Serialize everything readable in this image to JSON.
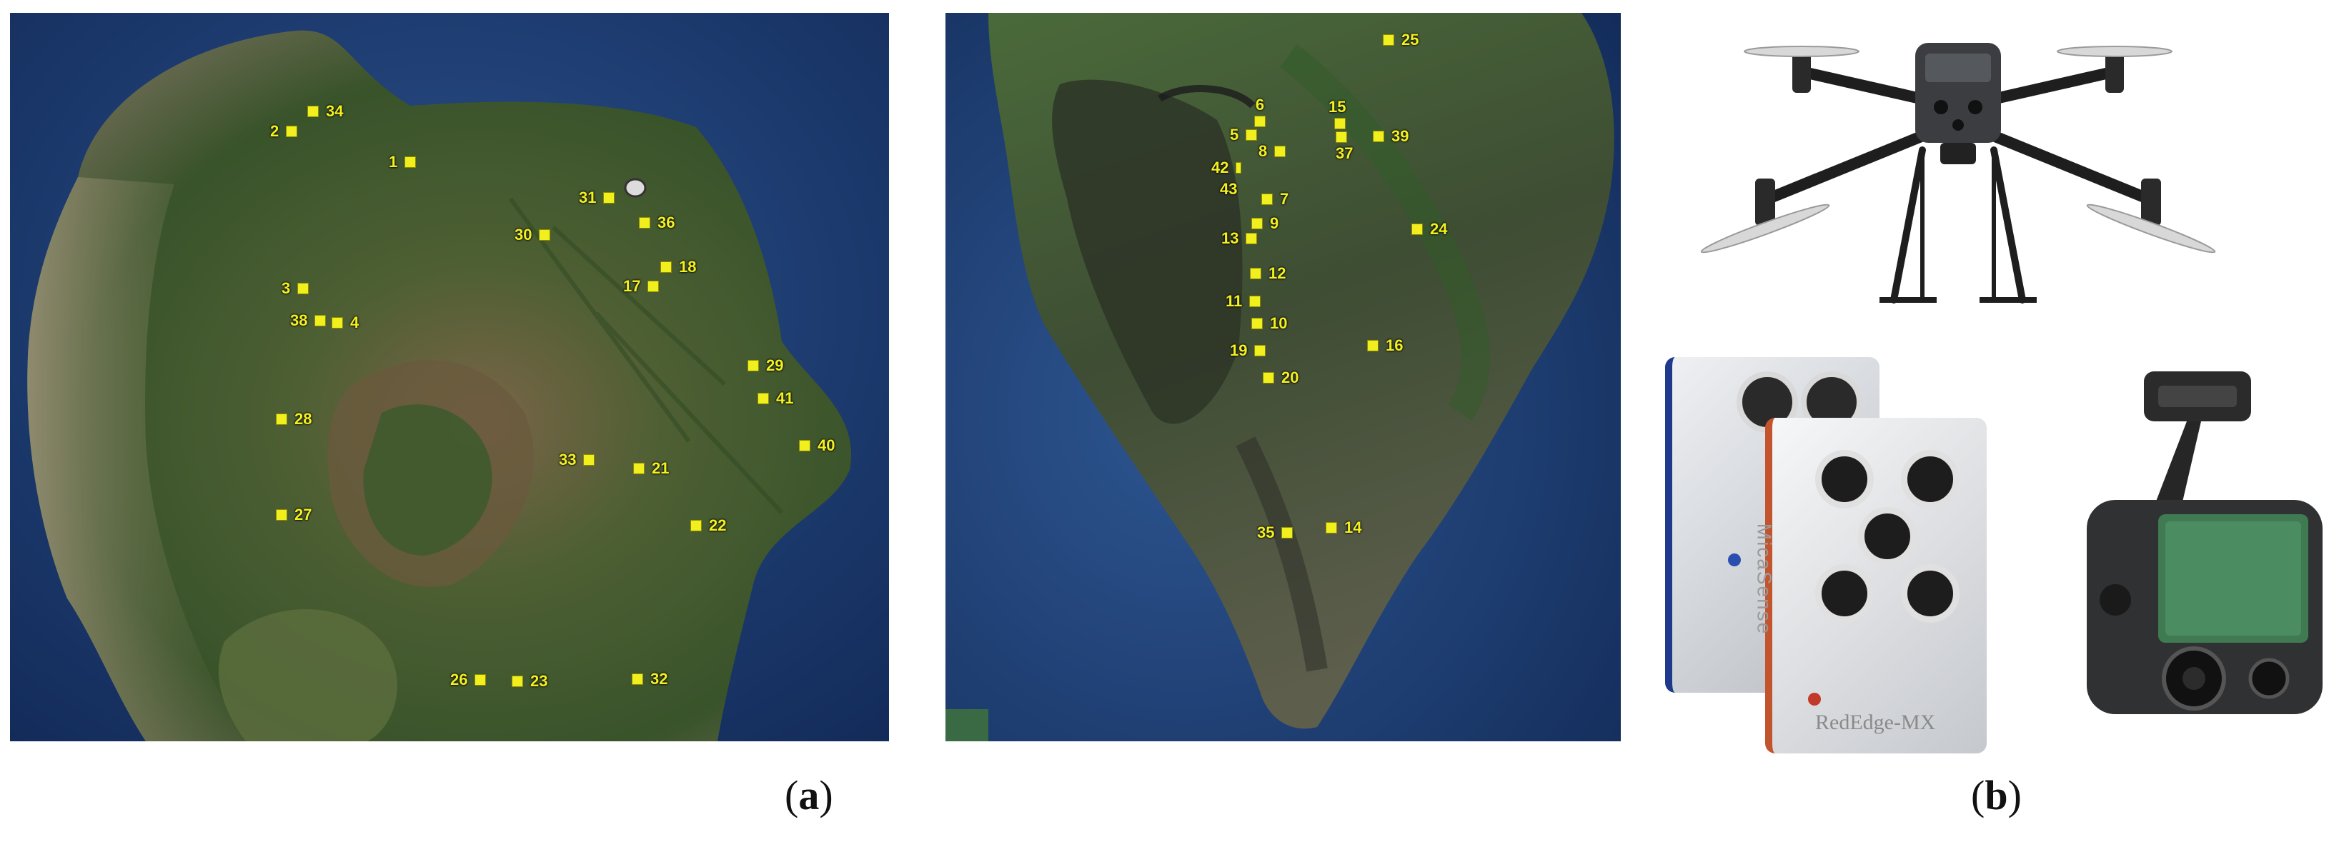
{
  "panel_a": {
    "caption_open": "(",
    "caption_letter": "a",
    "caption_close": ")",
    "map1_markers": [
      {
        "id": "34"
      },
      {
        "id": "2"
      },
      {
        "id": "1"
      },
      {
        "id": "31"
      },
      {
        "id": "36"
      },
      {
        "id": "30"
      },
      {
        "id": "18"
      },
      {
        "id": "17"
      },
      {
        "id": "3"
      },
      {
        "id": "38"
      },
      {
        "id": "4"
      },
      {
        "id": "29"
      },
      {
        "id": "41"
      },
      {
        "id": "28"
      },
      {
        "id": "40"
      },
      {
        "id": "33"
      },
      {
        "id": "21"
      },
      {
        "id": "27"
      },
      {
        "id": "22"
      },
      {
        "id": "26"
      },
      {
        "id": "23"
      },
      {
        "id": "32"
      }
    ],
    "map2_markers": [
      {
        "id": "25"
      },
      {
        "id": "6"
      },
      {
        "id": "15"
      },
      {
        "id": "5"
      },
      {
        "id": "8"
      },
      {
        "id": "37"
      },
      {
        "id": "39"
      },
      {
        "id": "42"
      },
      {
        "id": "43"
      },
      {
        "id": "7"
      },
      {
        "id": "9"
      },
      {
        "id": "24"
      },
      {
        "id": "13"
      },
      {
        "id": "12"
      },
      {
        "id": "11"
      },
      {
        "id": "10"
      },
      {
        "id": "16"
      },
      {
        "id": "19"
      },
      {
        "id": "20"
      },
      {
        "id": "35"
      },
      {
        "id": "14"
      }
    ]
  },
  "panel_b": {
    "caption_open": "(",
    "caption_letter": "b",
    "caption_close": ")",
    "camera_brand_text": "RedEdge-MX",
    "camera_side_text": "MicaSense",
    "drone_icon": "quadcopter-drone",
    "lidar_icon": "gimbal-sensor"
  },
  "colors": {
    "marker_fill": "#f2ef1f",
    "ocean": "#1f3f76",
    "vegetation": "#3d5a2c"
  }
}
